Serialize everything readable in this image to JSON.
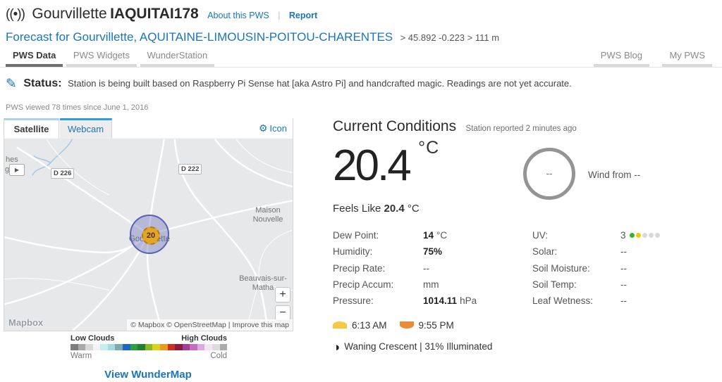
{
  "header": {
    "broadcast_icon": "((•))",
    "station_city": "Gourvillette",
    "station_id": "IAQUITAI178",
    "about_link": "About this PWS",
    "separator": "|",
    "report_link": "Report",
    "forecast_link": "Forecast for Gourvillette, AQUITAINE-LIMOUSIN-POITOU-CHARENTES",
    "coords": "> 45.892 -0.223 > 111 m"
  },
  "tabs": {
    "left": [
      {
        "label": "PWS Data"
      },
      {
        "label": "PWS Widgets"
      },
      {
        "label": "WunderStation"
      }
    ],
    "right": [
      {
        "label": "PWS Blog"
      },
      {
        "label": "My PWS"
      }
    ]
  },
  "status": {
    "pencil_icon": "✎",
    "label": "Status:",
    "text": "Station is being built based on Raspberry Pi Sense hat [aka Astro Pi] and handcrafted magic. Readings are not yet accurate."
  },
  "viewed": "PWS viewed 78 times since June 1, 2016",
  "map": {
    "tab_satellite": "Satellite",
    "tab_webcam": "Webcam",
    "gear_icon": "⚙",
    "icon_button": "Icon",
    "road_label_1": "D 226",
    "road_label_2": "D 222",
    "place_1": "Maison Nouvelle",
    "place_2": "Beauvais-sur-Matha",
    "town": "Gourvillette",
    "marker_value": "20",
    "play_icon": "▶",
    "edge_label_1": "hes",
    "edge_label_2": "g",
    "zoom_in": "+",
    "zoom_out": "−",
    "logo": "Mapbox",
    "attribution_text": "© Mapbox © OpenStreetMap |",
    "improve_link": "Improve this map",
    "legend": {
      "low": "Low Clouds",
      "high": "High Clouds",
      "warm": "Warm",
      "cold": "Cold",
      "colors": [
        "#7d7d7d",
        "#a9a9a9",
        "#d9d9d9",
        "#f4f4f4",
        "#c6eef0",
        "#9fdde0",
        "#7fa8ab",
        "#1f66c9",
        "#2f9e3f",
        "#257f32",
        "#8ab827",
        "#d8d41e",
        "#e99a20",
        "#cc3020",
        "#8e1a3c",
        "#9c3f9e",
        "#c26cc4",
        "#dcaade",
        "#f2e6f2",
        "#dcdcdc",
        "#ababab"
      ]
    },
    "wundermap_link": "View WunderMap"
  },
  "conditions": {
    "title": "Current Conditions",
    "reported": "Station reported 2 minutes ago",
    "temp_value": "20.4",
    "temp_unit": "°C",
    "feels_like_label": "Feels Like",
    "feels_like_value": "20.4",
    "feels_like_unit": "°C",
    "wind_value": "--",
    "wind_from": "Wind from --",
    "left_rows": [
      {
        "label": "Dew Point:",
        "value": "14",
        "unit": "°C"
      },
      {
        "label": "Humidity:",
        "value": "75%",
        "unit": ""
      },
      {
        "label": "Precip Rate:",
        "value": "",
        "unit": "--"
      },
      {
        "label": "Precip Accum:",
        "value": "",
        "unit": "mm"
      },
      {
        "label": "Pressure:",
        "value": "1014.11",
        "unit": "hPa"
      }
    ],
    "right_rows": [
      {
        "label": "UV:",
        "value": "",
        "unit": "3"
      },
      {
        "label": "Solar:",
        "value": "",
        "unit": "--"
      },
      {
        "label": "Soil Moisture:",
        "value": "",
        "unit": "--"
      },
      {
        "label": "Soil Temp:",
        "value": "",
        "unit": "--"
      },
      {
        "label": "Leaf Wetness:",
        "value": "",
        "unit": "--"
      }
    ],
    "uv_dot_colors": [
      "#33b52a",
      "#e6d000",
      "#d9d9d9",
      "#d9d9d9",
      "#d9d9d9"
    ],
    "sunrise_time": "6:13 AM",
    "sunset_time": "9:55 PM",
    "moon_icon": "◑",
    "moon_text": "Waning Crescent | 31% Illuminated"
  }
}
